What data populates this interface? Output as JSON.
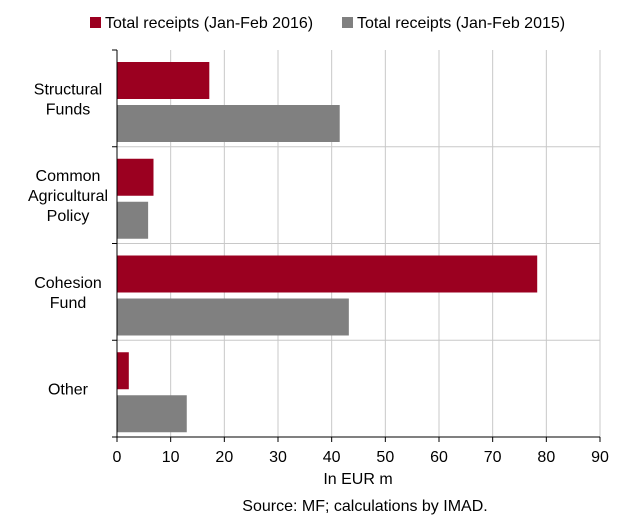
{
  "chart_data": {
    "type": "bar",
    "orientation": "horizontal",
    "categories": [
      [
        "Structural",
        "Funds"
      ],
      [
        "Common",
        "Agricultural",
        "Policy"
      ],
      [
        "Cohesion",
        "Fund"
      ],
      [
        "Other"
      ]
    ],
    "series": [
      {
        "name": "Total receipts (Jan-Feb 2016)",
        "color": "#9b0020",
        "values": [
          17.2,
          6.8,
          78.3,
          2.2
        ]
      },
      {
        "name": "Total receipts (Jan-Feb 2015)",
        "color": "#808080",
        "values": [
          41.5,
          5.8,
          43.2,
          13.0
        ]
      }
    ],
    "xlim": [
      0,
      90
    ],
    "xticks": [
      0,
      10,
      20,
      30,
      40,
      50,
      60,
      70,
      80,
      90
    ],
    "xlabel": "In EUR m",
    "ylabel": "",
    "title": "",
    "source_note": "Source: MF; calculations by IMAD.",
    "grid": "vertical",
    "legend_position": "top"
  }
}
